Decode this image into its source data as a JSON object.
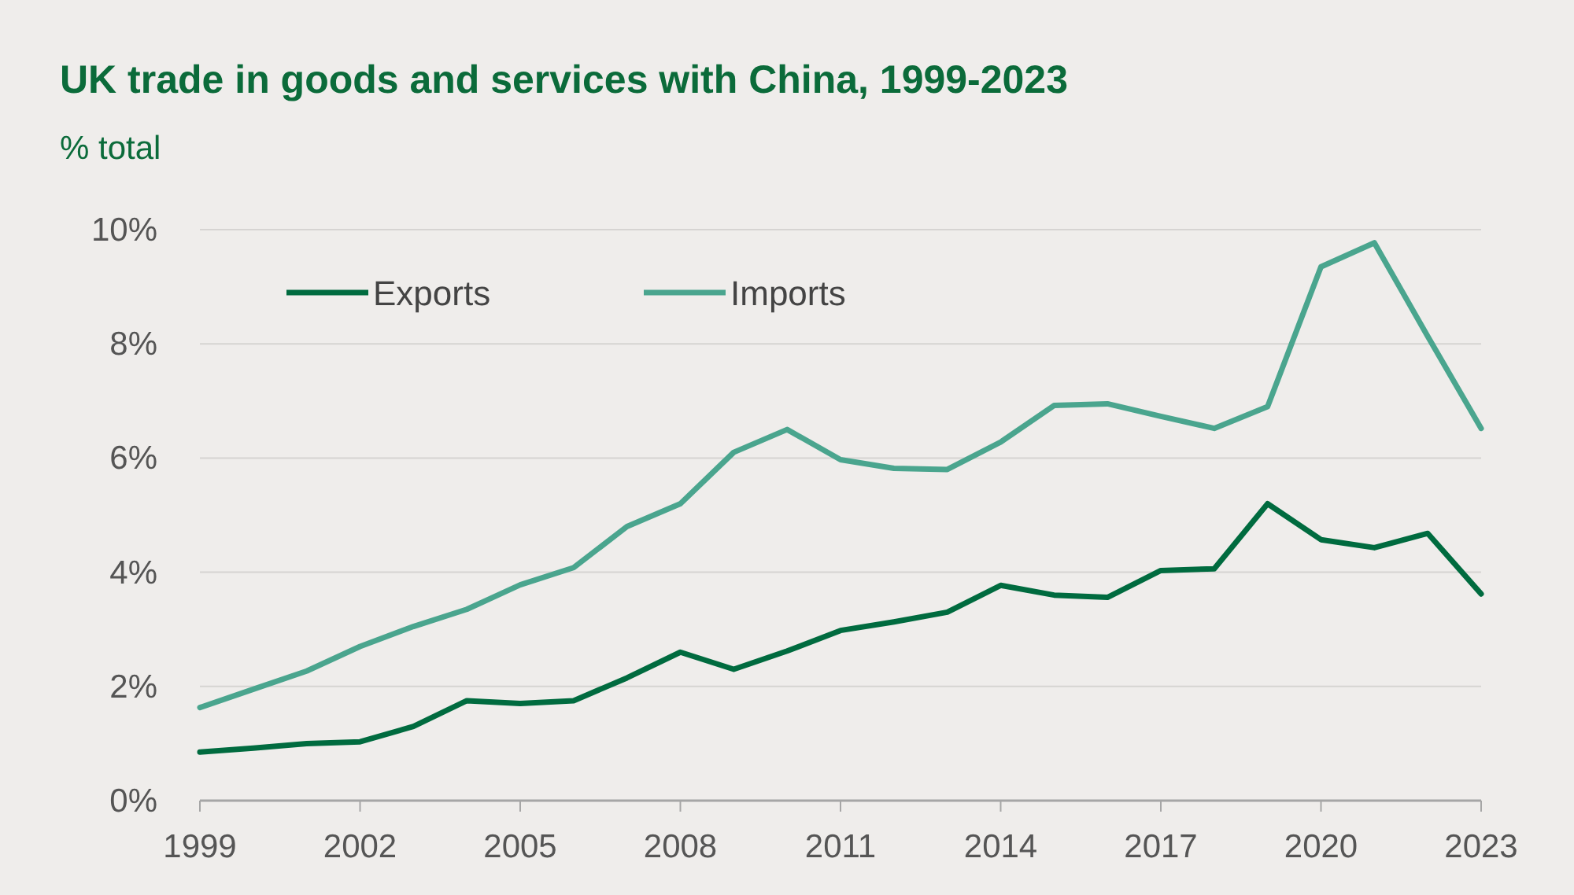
{
  "chart_data": {
    "type": "line",
    "title": "UK trade in goods and services with China, 1999-2023",
    "ylabel": "% total",
    "x": [
      1999,
      2000,
      2001,
      2002,
      2003,
      2004,
      2005,
      2006,
      2007,
      2008,
      2009,
      2010,
      2011,
      2012,
      2013,
      2014,
      2015,
      2016,
      2017,
      2018,
      2019,
      2020,
      2021,
      2022,
      2023
    ],
    "series": [
      {
        "name": "Exports",
        "color": "#006b3f",
        "values": [
          0.85,
          0.92,
          1.0,
          1.03,
          1.3,
          1.75,
          1.7,
          1.75,
          2.15,
          2.6,
          2.3,
          2.62,
          2.98,
          3.13,
          3.3,
          3.77,
          3.6,
          3.56,
          4.03,
          4.06,
          5.2,
          4.57,
          4.43,
          4.68,
          3.62
        ]
      },
      {
        "name": "Imports",
        "color": "#4aa58e",
        "values": [
          1.63,
          1.95,
          2.27,
          2.7,
          3.05,
          3.35,
          3.78,
          4.08,
          4.8,
          5.2,
          6.1,
          6.5,
          5.97,
          5.82,
          5.8,
          6.28,
          6.92,
          6.95,
          6.73,
          6.52,
          6.9,
          9.35,
          9.77,
          8.13,
          6.52
        ]
      }
    ],
    "xlim": [
      1999,
      2023
    ],
    "xticks": [
      1999,
      2002,
      2005,
      2008,
      2011,
      2014,
      2017,
      2020,
      2023
    ],
    "ylim": [
      0,
      10
    ],
    "yticks": [
      {
        "value": 0,
        "label": "0%"
      },
      {
        "value": 2,
        "label": "2%"
      },
      {
        "value": 4,
        "label": "4%"
      },
      {
        "value": 6,
        "label": "6%"
      },
      {
        "value": 8,
        "label": "8%"
      },
      {
        "value": 10,
        "label": "10%"
      }
    ],
    "grid": "y",
    "legend": "top left",
    "marker": "none",
    "line_style": "solid"
  }
}
